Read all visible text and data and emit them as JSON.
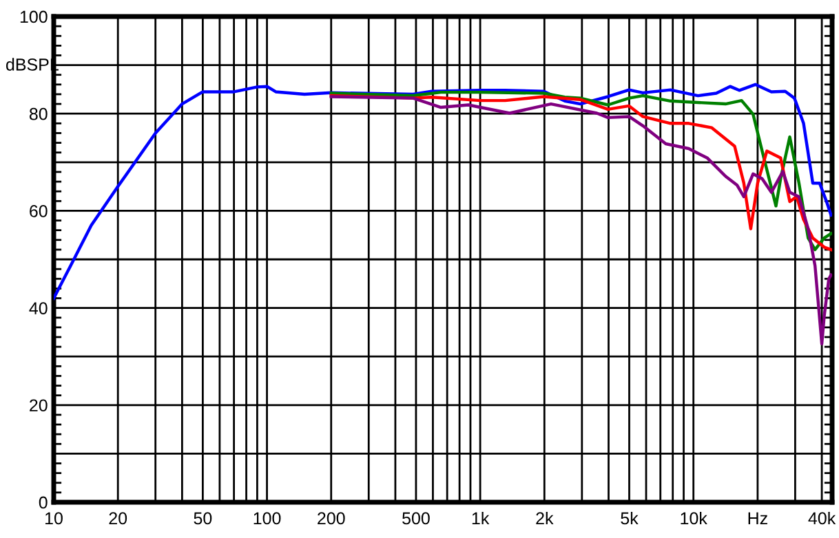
{
  "chart_data": {
    "type": "line",
    "ylabel": "dBSPL",
    "log": "x",
    "grid": true,
    "xlim": [
      10,
      44700
    ],
    "ylim": [
      0,
      100
    ],
    "xticks": [
      10,
      20,
      {
        "value": 30,
        "label": null
      },
      {
        "value": 40,
        "label": null
      },
      50,
      {
        "value": 60,
        "label": null
      },
      {
        "value": 70,
        "label": null
      },
      {
        "value": 80,
        "label": null
      },
      {
        "value": 90,
        "label": null
      },
      100,
      200,
      {
        "value": 300,
        "label": null
      },
      {
        "value": 400,
        "label": null
      },
      500,
      {
        "value": 600,
        "label": null
      },
      {
        "value": 700,
        "label": null
      },
      {
        "value": 800,
        "label": null
      },
      {
        "value": 900,
        "label": null
      },
      {
        "value": 1000,
        "label": "1k"
      },
      {
        "value": 2000,
        "label": "2k"
      },
      {
        "value": 3000,
        "label": null
      },
      {
        "value": 4000,
        "label": null
      },
      {
        "value": 5000,
        "label": "5k"
      },
      {
        "value": 6000,
        "label": null
      },
      {
        "value": 7000,
        "label": null
      },
      {
        "value": 8000,
        "label": null
      },
      {
        "value": 9000,
        "label": null
      },
      {
        "value": 10000,
        "label": "10k"
      },
      {
        "value": 20000,
        "label": "Hz"
      },
      {
        "value": 30000,
        "label": null
      },
      {
        "value": 40000,
        "label": "40k"
      }
    ],
    "yticks": [
      0,
      {
        "value": 10,
        "label": null
      },
      20,
      {
        "value": 30,
        "label": null
      },
      40,
      {
        "value": 50,
        "label": null
      },
      60,
      {
        "value": 70,
        "label": null
      },
      80,
      {
        "value": 90,
        "label": null
      },
      100
    ],
    "series": [
      {
        "color": "#0000ff",
        "x": [
          10,
          12,
          15,
          20,
          30,
          40,
          50,
          70,
          90,
          100,
          110,
          150,
          200,
          485,
          592,
          1000,
          1309,
          1986,
          2493,
          2951,
          3971,
          4990,
          5794,
          7798,
          10500,
          12800,
          14860,
          16410,
          19510,
          23200,
          26930,
          29740,
          32840,
          36280,
          39060,
          42090,
          44190
        ],
        "values": [
          42,
          48.7,
          57,
          65,
          76,
          82,
          84.5,
          84.5,
          85.5,
          85.6,
          84.5,
          84,
          84.3,
          84.0,
          84.6,
          84.8,
          84.8,
          84.6,
          82.6,
          82.0,
          83.5,
          84.9,
          84.3,
          84.9,
          83.7,
          84.2,
          85.6,
          84.8,
          86.0,
          84.5,
          84.6,
          83.2,
          78.0,
          65.7,
          65.7,
          61.9,
          59.1
        ]
      },
      {
        "color": "#008000",
        "x": [
          200,
          485,
          654,
          1000,
          1986,
          2493,
          2951,
          3971,
          4990,
          5794,
          7798,
          10500,
          14150,
          16820,
          19040,
          21000,
          24380,
          25630,
          28300,
          31250,
          34510,
          37170,
          41050,
          44190
        ],
        "values": [
          84.2,
          83.7,
          84.4,
          84.4,
          84.2,
          83.4,
          83.2,
          81.8,
          83.2,
          83.7,
          82.6,
          82.3,
          82.0,
          82.7,
          79.9,
          72.3,
          61.0,
          66.6,
          75.2,
          65.7,
          54.4,
          52.0,
          54.4,
          55.3
        ]
      },
      {
        "color": "#ff0000",
        "x": [
          200,
          485,
          592,
          1000,
          1309,
          1986,
          2951,
          3971,
          4990,
          5794,
          7798,
          9506,
          12190,
          15600,
          17230,
          18570,
          20000,
          22090,
          25630,
          28300,
          30480,
          32840,
          36280,
          41050,
          44190
        ],
        "values": [
          83.7,
          83.2,
          83.4,
          82.7,
          82.7,
          83.5,
          82.9,
          80.9,
          81.6,
          79.4,
          78.0,
          78.0,
          77.1,
          73.3,
          65.7,
          56.3,
          65.7,
          72.3,
          70.9,
          61.9,
          62.9,
          58.2,
          54.4,
          52.5,
          52.0
        ]
      },
      {
        "color": "#800080",
        "x": [
          200,
          485,
          654,
          880,
          1374,
          2148,
          3524,
          3971,
          4990,
          5794,
          7418,
          9506,
          11590,
          14150,
          16000,
          17230,
          19040,
          21000,
          23200,
          26260,
          28300,
          31250,
          34510,
          37170,
          40000,
          41050,
          43150,
          44190
        ],
        "values": [
          83.5,
          83.2,
          81.3,
          81.8,
          80.1,
          82.0,
          80.1,
          79.2,
          79.4,
          77.5,
          73.8,
          72.8,
          70.9,
          67.1,
          65.3,
          62.9,
          67.6,
          66.6,
          63.8,
          68.1,
          63.8,
          62.9,
          56.3,
          48.7,
          32.6,
          38.3,
          46,
          46.8
        ]
      }
    ]
  }
}
